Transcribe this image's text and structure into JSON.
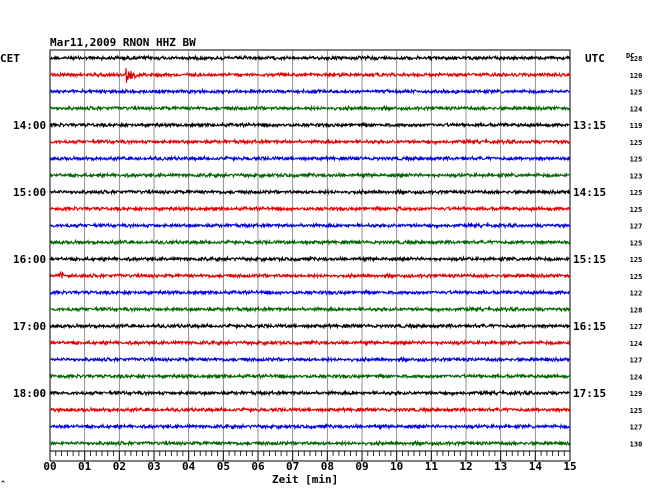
{
  "chart_data": {
    "type": "line",
    "title": "Mar11,2009   RNON HHZ BW",
    "left_timezone": "CET",
    "right_timezone": "UTC",
    "right_column_header": "DC",
    "xlabel": "Zeit [min]",
    "xlim": [
      0,
      15
    ],
    "x_tick_labels": [
      "00",
      "01",
      "02",
      "03",
      "04",
      "05",
      "06",
      "07",
      "08",
      "09",
      "10",
      "11",
      "12",
      "13",
      "14",
      "15"
    ],
    "grid": true,
    "trace_colors": [
      "#000000",
      "#e00000",
      "#0000e0",
      "#006400"
    ],
    "trace_count": 24,
    "trace_interval_min": 15,
    "hour_labels_left": [
      {
        "trace": 4,
        "text": "14:00"
      },
      {
        "trace": 8,
        "text": "15:00"
      },
      {
        "trace": 12,
        "text": "16:00"
      },
      {
        "trace": 16,
        "text": "17:00"
      },
      {
        "trace": 20,
        "text": "18:00"
      }
    ],
    "hour_labels_right": [
      {
        "trace": 4,
        "text": "13:15"
      },
      {
        "trace": 8,
        "text": "14:15"
      },
      {
        "trace": 12,
        "text": "15:15"
      },
      {
        "trace": 16,
        "text": "16:15"
      },
      {
        "trace": 20,
        "text": "17:15"
      }
    ],
    "dc_offsets": [
      128,
      120,
      125,
      124,
      119,
      125,
      125,
      123,
      125,
      125,
      127,
      125,
      125,
      125,
      122,
      128,
      127,
      124,
      127,
      124,
      129,
      125,
      127,
      130
    ],
    "events": [
      {
        "trace": 1,
        "minute": 2.2,
        "amplitude": 9,
        "label": ""
      },
      {
        "trace": 13,
        "minute": 0.25,
        "amplitude": 5,
        "label": ""
      },
      {
        "trace": 9,
        "minute": 10.0,
        "amplitude": 3,
        "label": ""
      }
    ]
  },
  "corner_mark": "^"
}
